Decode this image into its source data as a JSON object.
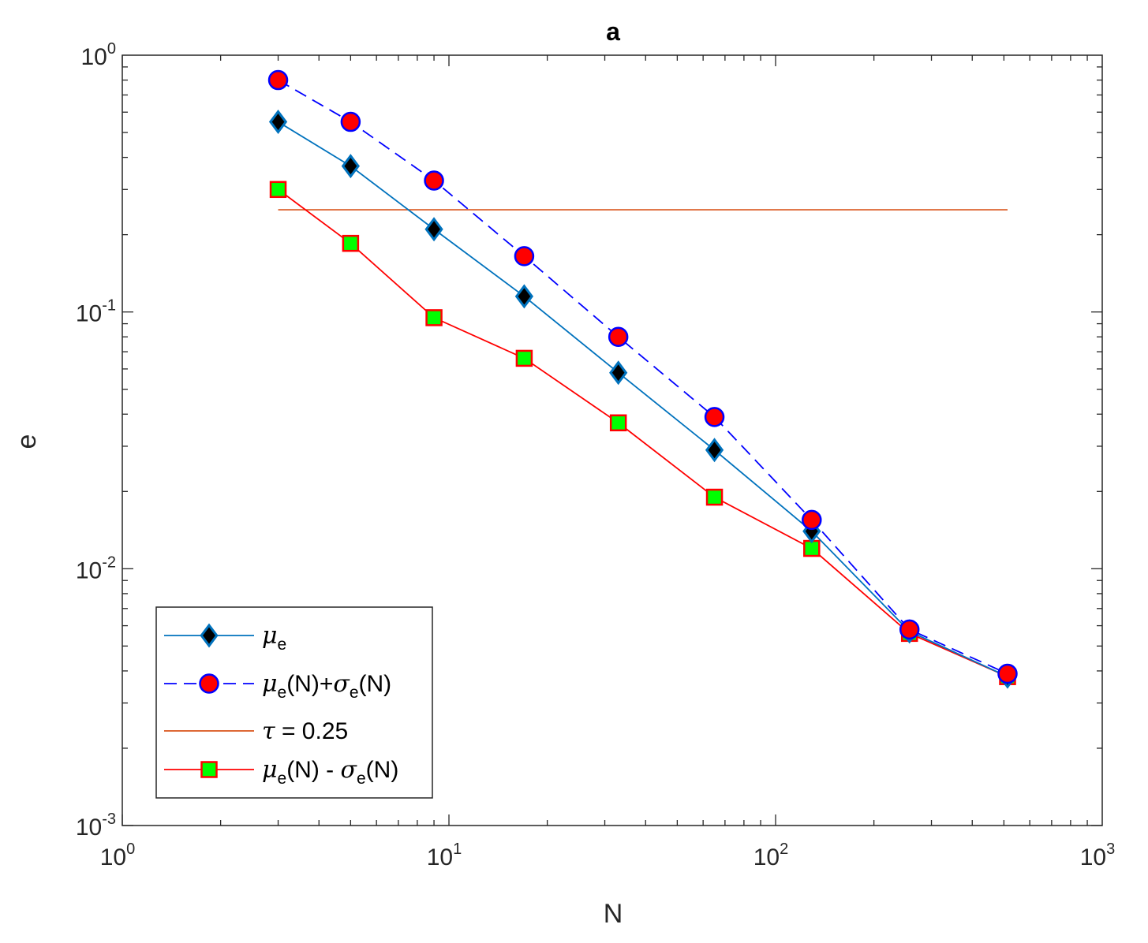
{
  "chart_data": {
    "type": "line",
    "title": "a",
    "xlabel": "N",
    "ylabel": "e",
    "xscale": "log",
    "yscale": "log",
    "xlim": [
      1,
      1000
    ],
    "ylim": [
      0.001,
      1
    ],
    "x_ticks": [
      {
        "base": "10",
        "exp": "0",
        "value": 1
      },
      {
        "base": "10",
        "exp": "1",
        "value": 10
      },
      {
        "base": "10",
        "exp": "2",
        "value": 100
      },
      {
        "base": "10",
        "exp": "3",
        "value": 1000
      }
    ],
    "y_ticks": [
      {
        "base": "10",
        "exp": "-3",
        "value": 0.001
      },
      {
        "base": "10",
        "exp": "-2",
        "value": 0.01
      },
      {
        "base": "10",
        "exp": "-1",
        "value": 0.1
      },
      {
        "base": "10",
        "exp": "0",
        "value": 1
      }
    ],
    "grid": false,
    "legend_position": "bottom-left",
    "series": [
      {
        "key": "mu",
        "color": "#0072BD",
        "marker": "diamond",
        "marker_face": "#000000",
        "line_style": "solid",
        "legend": {
          "greek": "μ",
          "sub": "e",
          "rest": ""
        },
        "x": [
          3,
          5,
          9,
          17,
          33,
          65,
          129,
          257,
          513
        ],
        "y": [
          0.55,
          0.37,
          0.21,
          0.115,
          0.058,
          0.029,
          0.014,
          0.0057,
          0.0038
        ]
      },
      {
        "key": "mu_plus_sigma",
        "color": "#0000FF",
        "marker": "circle",
        "marker_face": "#FF0000",
        "line_style": "dashed",
        "legend": {
          "greek": "μ",
          "sub": "e",
          "rest": "(N)+",
          "greek2": "σ",
          "sub2": "e",
          "rest2": "(N)"
        },
        "x": [
          3,
          5,
          9,
          17,
          33,
          65,
          129,
          257,
          513
        ],
        "y": [
          0.8,
          0.55,
          0.325,
          0.165,
          0.08,
          0.039,
          0.0155,
          0.0058,
          0.0039
        ]
      },
      {
        "key": "tau",
        "color": "#D95319",
        "marker": "none",
        "line_style": "solid",
        "legend": {
          "greek": "τ",
          "sub": "",
          "rest": " = 0.25"
        },
        "x": [
          3,
          513
        ],
        "y": [
          0.25,
          0.25
        ]
      },
      {
        "key": "mu_minus_sigma",
        "color": "#FF0000",
        "marker": "square",
        "marker_face": "#00FF00",
        "line_style": "solid",
        "legend": {
          "greek": "μ",
          "sub": "e",
          "rest": "(N) - ",
          "greek2": "σ",
          "sub2": "e",
          "rest2": "(N)"
        },
        "x": [
          3,
          5,
          9,
          17,
          33,
          65,
          129,
          257,
          513
        ],
        "y": [
          0.3,
          0.185,
          0.095,
          0.066,
          0.037,
          0.019,
          0.012,
          0.0056,
          0.0038
        ]
      }
    ]
  }
}
